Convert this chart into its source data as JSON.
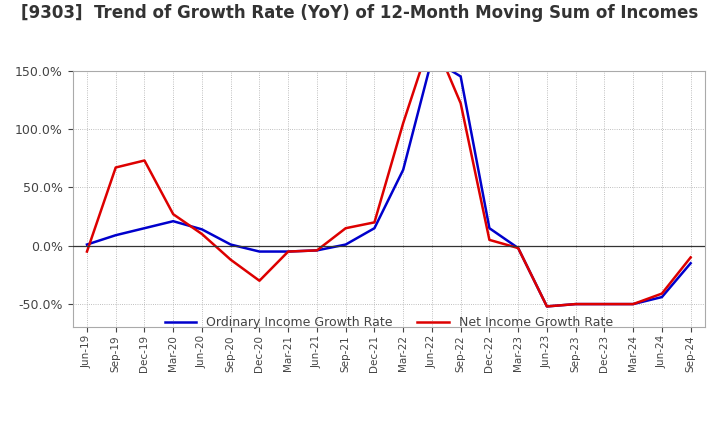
{
  "title": "[9303]  Trend of Growth Rate (YoY) of 12-Month Moving Sum of Incomes",
  "title_fontsize": 12,
  "background_color": "#ffffff",
  "grid_color": "#aaaaaa",
  "legend_labels": [
    "Ordinary Income Growth Rate",
    "Net Income Growth Rate"
  ],
  "legend_colors": [
    "#0000cc",
    "#dd0000"
  ],
  "x_labels": [
    "Jun-19",
    "Sep-19",
    "Dec-19",
    "Mar-20",
    "Jun-20",
    "Sep-20",
    "Dec-20",
    "Mar-21",
    "Jun-21",
    "Sep-21",
    "Dec-21",
    "Mar-22",
    "Jun-22",
    "Sep-22",
    "Dec-22",
    "Mar-23",
    "Jun-23",
    "Sep-23",
    "Dec-23",
    "Mar-24",
    "Jun-24",
    "Sep-24"
  ],
  "ordinary_income_growth": [
    0.01,
    0.09,
    0.15,
    0.21,
    0.14,
    0.01,
    -0.05,
    -0.05,
    -0.04,
    0.01,
    0.15,
    0.65,
    1.6,
    1.45,
    0.15,
    -0.02,
    -0.52,
    -0.5,
    -0.5,
    -0.5,
    -0.44,
    -0.15
  ],
  "net_income_growth": [
    -0.05,
    0.67,
    0.73,
    0.27,
    0.1,
    -0.12,
    -0.3,
    -0.05,
    -0.04,
    0.15,
    0.2,
    1.05,
    1.8,
    1.22,
    0.05,
    -0.02,
    -0.52,
    -0.5,
    -0.5,
    -0.5,
    -0.41,
    -0.1
  ],
  "ylim_min": -0.7,
  "ylim_max": 0.95,
  "yticks": [
    -0.5,
    0.0,
    0.5,
    1.0,
    1.5
  ]
}
